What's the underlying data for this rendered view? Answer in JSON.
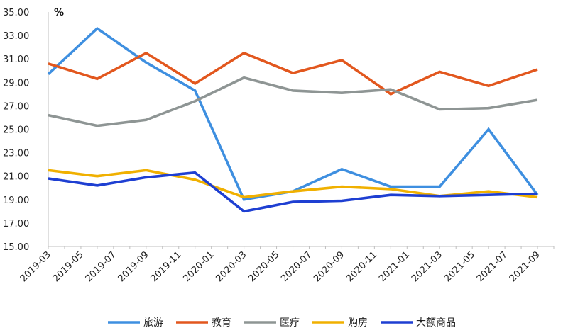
{
  "chart_data": {
    "type": "line",
    "title": "",
    "unit_label": "%",
    "xlabel": "",
    "ylabel": "",
    "ylim": [
      15,
      35
    ],
    "y_ticks": [
      "15.00",
      "17.00",
      "19.00",
      "21.00",
      "23.00",
      "25.00",
      "27.00",
      "29.00",
      "31.00",
      "33.00",
      "35.00"
    ],
    "x_ticks": [
      "2019-03",
      "2019-05",
      "2019-07",
      "2019-09",
      "2019-11",
      "2020-01",
      "2020-03",
      "2020-05",
      "2020-07",
      "2020-09",
      "2020-11",
      "2021-01",
      "2021-03",
      "2021-05",
      "2021-07",
      "2021-09"
    ],
    "x": [
      "2019-03",
      "2019-06",
      "2019-09",
      "2019-12",
      "2020-03",
      "2020-06",
      "2020-09",
      "2020-12",
      "2021-03",
      "2021-06",
      "2021-09"
    ],
    "grid": false,
    "legend_position": "bottom",
    "series": [
      {
        "name": "旅游",
        "color": "#3E8FE0",
        "values": [
          29.7,
          33.6,
          30.7,
          28.3,
          19.0,
          19.7,
          21.6,
          20.1,
          20.1,
          25.0,
          19.4
        ]
      },
      {
        "name": "教育",
        "color": "#E2571E",
        "values": [
          30.6,
          29.3,
          31.5,
          28.9,
          31.5,
          29.8,
          30.9,
          28.0,
          29.9,
          28.7,
          30.1
        ]
      },
      {
        "name": "医疗",
        "color": "#8E9594",
        "values": [
          26.2,
          25.3,
          25.8,
          27.4,
          29.4,
          28.3,
          28.1,
          28.4,
          26.7,
          26.8,
          27.5
        ]
      },
      {
        "name": "购房",
        "color": "#F0B000",
        "values": [
          21.5,
          21.0,
          21.5,
          20.7,
          19.2,
          19.7,
          20.1,
          19.9,
          19.3,
          19.7,
          19.2
        ]
      },
      {
        "name": "大额商品",
        "color": "#1E3FD2",
        "values": [
          20.8,
          20.2,
          20.9,
          21.3,
          18.0,
          18.8,
          18.9,
          19.4,
          19.3,
          19.4,
          19.5
        ]
      }
    ]
  }
}
